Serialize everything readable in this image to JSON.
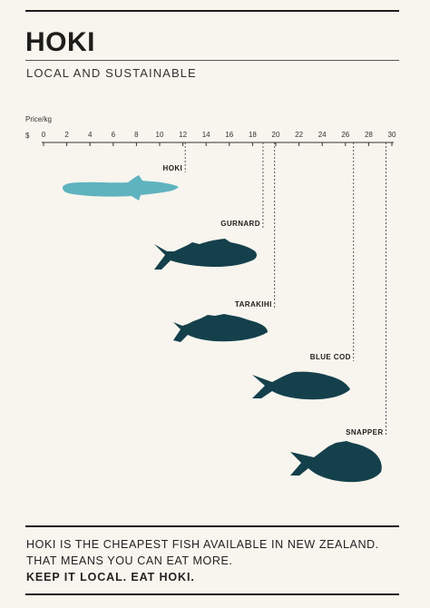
{
  "header": {
    "title": "HOKI",
    "subtitle": "LOCAL AND SUSTAINABLE"
  },
  "footer": {
    "line1": "HOKI IS THE CHEAPEST FISH AVAILABLE IN NEW ZEALAND.",
    "line2": "THAT MEANS YOU CAN EAT MORE.",
    "line3": "KEEP IT LOCAL. EAT HOKI."
  },
  "colors": {
    "background": "#f7f5ee",
    "hoki": "#5fb3bf",
    "other_fish": "#14404c",
    "text": "#1d1d1b"
  },
  "chart_data": {
    "type": "bar",
    "title": "",
    "xlabel": "Price/kg",
    "x_unit_symbol": "$",
    "xlim": [
      0,
      30
    ],
    "x_ticks": [
      0,
      2,
      4,
      6,
      8,
      10,
      12,
      14,
      16,
      18,
      20,
      22,
      24,
      26,
      28,
      30
    ],
    "categories": [
      "HOKI",
      "GURNARD",
      "TARAKIHI",
      "BLUE COD",
      "SNAPPER"
    ],
    "values": [
      12.2,
      18.9,
      19.9,
      26.7,
      29.5
    ],
    "grid": false,
    "legend": "none",
    "marker_style": "fish silhouettes with dashed drop lines from the price axis"
  }
}
